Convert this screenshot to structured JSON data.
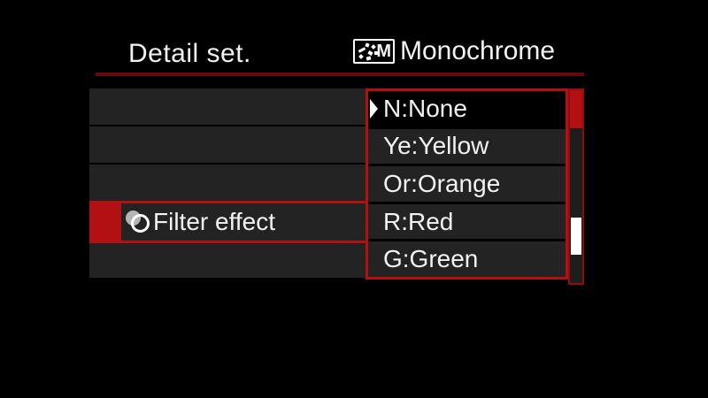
{
  "header": {
    "title": "Detail set.",
    "picture_style": {
      "icon": "monochrome-style-icon",
      "icon_letter": "M",
      "label": "Monochrome"
    }
  },
  "menu": {
    "rows": [
      {
        "label": ""
      },
      {
        "label": ""
      },
      {
        "label": ""
      },
      {
        "label": "Filter effect",
        "icon": "filter-effect-icon",
        "selected": true
      },
      {
        "label": ""
      }
    ]
  },
  "dropdown": {
    "options": [
      {
        "label": "N:None",
        "selected": true
      },
      {
        "label": "Ye:Yellow",
        "selected": false
      },
      {
        "label": "Or:Orange",
        "selected": false
      },
      {
        "label": "R:Red",
        "selected": false
      },
      {
        "label": "G:Green",
        "selected": false
      }
    ],
    "scrollbar": {
      "red_segment_row": 1,
      "white_thumb_row": 4,
      "total_rows": 5
    }
  },
  "colors": {
    "accent_red": "#b31014",
    "header_underline": "#650a0c",
    "row_bg": "#232323",
    "selected_option_bg": "#000000",
    "text": "#f2f2f2",
    "icon_gray": "#b5b5b5",
    "scroll_track": "#1d1d1d",
    "scroll_border": "#8d0d10",
    "scroll_thumb": "#ffffff"
  }
}
